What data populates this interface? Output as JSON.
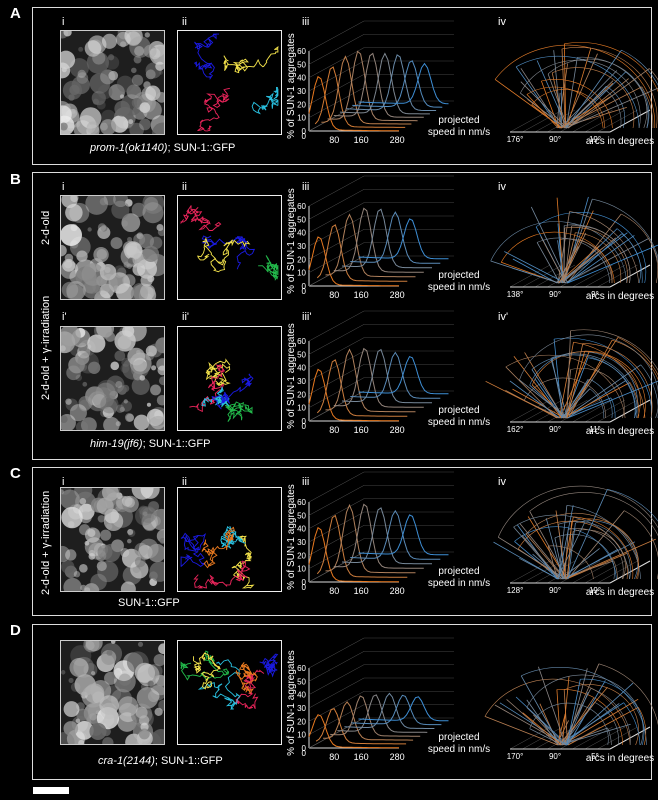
{
  "panels": [
    {
      "letter": "A",
      "subs": [
        "i",
        "ii",
        "iii",
        "iv"
      ],
      "genotype_italic": "prom-1(ok1140)",
      "genotype_rest": "; SUN-1::GFP",
      "row_label": "",
      "arc_ticks": [
        "176°",
        "90°",
        "19°"
      ],
      "ypeak_orange": 45,
      "ypeak_blue": 48
    },
    {
      "letter": "B",
      "subs": [
        "i",
        "ii",
        "iii",
        "iv"
      ],
      "subs2": [
        "i'",
        "ii'",
        "iii'",
        "iv'"
      ],
      "genotype_italic": "him-19(jf6)",
      "genotype_rest": "; SUN-1::GFP",
      "row_label": "2-d-old",
      "row_label2": "2-d-old + γ-irradiation",
      "arc_ticks": [
        "138°",
        "90°",
        "9°"
      ],
      "arc_ticks2": [
        "162°",
        "90°",
        "11°"
      ]
    },
    {
      "letter": "C",
      "subs": [
        "i",
        "ii",
        "iii",
        "iv"
      ],
      "genotype_italic": "",
      "genotype_rest": "SUN-1::GFP",
      "row_label": "2-d-old + γ-irradiation",
      "arc_ticks": [
        "128°",
        "90°",
        "19°"
      ]
    },
    {
      "letter": "D",
      "subs": [],
      "genotype_italic": "cra-1(2144)",
      "genotype_rest": "; SUN-1::GFP",
      "row_label": "",
      "arc_ticks": [
        "170°",
        "90°",
        "5°"
      ]
    }
  ],
  "speed_axis": {
    "ylabel": "% of SUN-1 aggregates",
    "xlabel_line1": "projected",
    "xlabel_line2": "speed in nm/s",
    "yticks": [
      "0",
      "10",
      "20",
      "30",
      "40",
      "50",
      "60"
    ],
    "xticks": [
      "80",
      "160",
      "280"
    ]
  },
  "arc_axis": {
    "xlabel": "arcs in degrees"
  },
  "colors": {
    "orange": "#e8791f",
    "blue": "#3e8fd6",
    "yellow": "#f2e14a",
    "pink": "#e8245a",
    "navy": "#1a1ae0",
    "green": "#22b84a",
    "cyan": "#29c0e0"
  },
  "chart_data": [
    {
      "type": "line",
      "title": "",
      "xlabel": "projected speed in nm/s",
      "ylabel": "% of SUN-1 aggregates",
      "ylim": [
        0,
        60
      ],
      "xticks": [
        80,
        160,
        280
      ],
      "note": "3D waterfall of speed distributions; orange front series to blue back series",
      "peaks": [
        45,
        48,
        52,
        50,
        46,
        40,
        35
      ]
    },
    {
      "type": "line",
      "title": "",
      "xlabel": "projected speed in nm/s",
      "ylabel": "% of SUN-1 aggregates",
      "ylim": [
        0,
        60
      ],
      "xticks": [
        80,
        160,
        280
      ],
      "peaks": [
        40,
        44,
        48,
        46,
        42
      ]
    },
    {
      "type": "line",
      "title": "",
      "xlabel": "projected speed in nm/s",
      "ylabel": "% of SUN-1 aggregates",
      "ylim": [
        0,
        60
      ],
      "xticks": [
        80,
        160,
        280
      ],
      "peaks": [
        38,
        42,
        46,
        44,
        40
      ]
    },
    {
      "type": "line",
      "title": "",
      "xlabel": "projected speed in nm/s",
      "ylabel": "% of SUN-1 aggregates",
      "ylim": [
        0,
        60
      ],
      "xticks": [
        80,
        160,
        280
      ],
      "peaks": [
        40,
        45,
        50,
        48,
        44
      ]
    },
    {
      "type": "line",
      "title": "",
      "xlabel": "projected speed in nm/s",
      "ylabel": "% of SUN-1 aggregates",
      "ylim": [
        0,
        60
      ],
      "xticks": [
        80,
        160,
        280
      ],
      "peaks": [
        25,
        28,
        30,
        27,
        24
      ]
    }
  ]
}
